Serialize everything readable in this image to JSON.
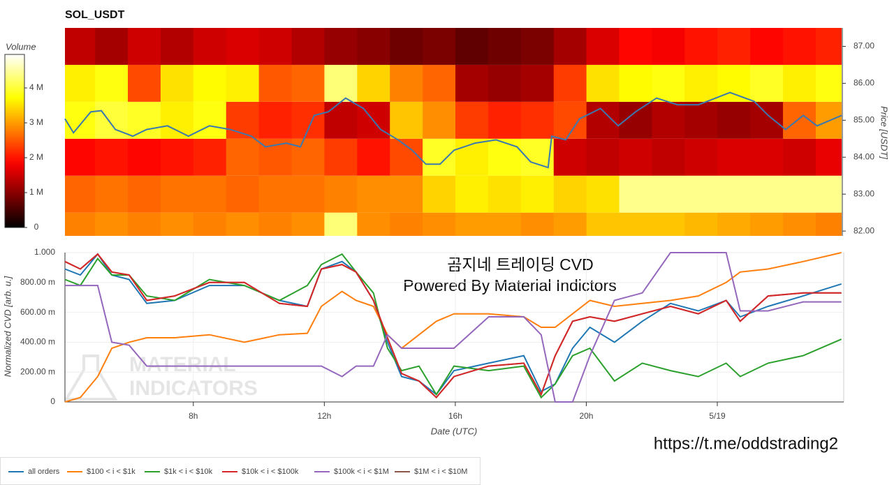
{
  "chart_data": [
    {
      "type": "heatmap",
      "title": "SOL_USDT",
      "ylabel": "Price [USDT]",
      "xlim": [
        4.08,
        27.79
      ],
      "ylim": [
        81.87,
        87.5
      ],
      "yticks": [
        {
          "value": 82,
          "label": "82.00"
        },
        {
          "value": 83,
          "label": "83.00"
        },
        {
          "value": 84,
          "label": "84.00"
        },
        {
          "value": 85,
          "label": "85.00"
        },
        {
          "value": 86,
          "label": "86.00"
        },
        {
          "value": 87,
          "label": "87.00"
        }
      ],
      "x_bins": [
        4,
        5,
        6,
        7,
        8,
        9,
        10,
        11,
        12,
        13,
        14,
        15,
        16,
        17,
        18,
        19,
        20,
        21,
        22,
        23,
        24,
        25,
        26,
        27,
        28
      ],
      "y_bins": [
        81.5,
        82.5,
        83.5,
        84.5,
        85.5,
        86.5,
        87.5
      ],
      "z": [
        [
          2800000,
          2900000,
          2800000,
          2900000,
          2800000,
          2900000,
          2800000,
          2900000,
          4300000,
          2900000,
          2800000,
          2900000,
          3000000,
          3000000,
          2900000,
          3000000,
          3300000,
          3300000,
          3300000,
          3200000,
          3100000,
          3000000,
          2900000,
          2800000
        ],
        [
          2600000,
          2700000,
          2600000,
          2700000,
          2700000,
          2600000,
          2700000,
          2700000,
          2800000,
          2900000,
          2900000,
          3400000,
          3600000,
          3500000,
          3600000,
          3400000,
          3500000,
          4400000,
          4400000,
          4400000,
          4400000,
          4400000,
          4400000,
          4400000
        ],
        [
          1900000,
          2000000,
          1900000,
          2000000,
          2100000,
          2600000,
          2500000,
          2600000,
          2300000,
          2000000,
          2400000,
          3900000,
          3600000,
          3800000,
          3900000,
          1500000,
          1400000,
          1500000,
          1400000,
          1500000,
          1600000,
          1600000,
          1500000,
          1700000
        ],
        [
          3800000,
          4000000,
          3900000,
          3600000,
          3800000,
          2300000,
          2100000,
          2200000,
          1400000,
          1500000,
          3300000,
          2900000,
          2300000,
          2100000,
          2200000,
          2400000,
          1300000,
          1100000,
          1300000,
          1200000,
          1100000,
          1200000,
          2600000,
          3000000
        ],
        [
          3600000,
          3800000,
          2400000,
          3500000,
          3700000,
          3600000,
          2500000,
          2600000,
          4300000,
          3400000,
          2800000,
          2600000,
          1200000,
          1100000,
          1200000,
          2300000,
          3500000,
          3700000,
          3800000,
          3600000,
          3700000,
          3900000,
          3600000,
          3800000
        ],
        [
          1400000,
          1200000,
          1500000,
          1300000,
          1500000,
          1600000,
          1500000,
          1300000,
          1100000,
          1000000,
          800000,
          900000,
          700000,
          800000,
          900000,
          1200000,
          1600000,
          1900000,
          1800000,
          2000000,
          2100000,
          1900000,
          2000000,
          2100000
        ]
      ],
      "colorbar": {
        "label": "Volume",
        "lim": [
          0,
          4960000
        ],
        "ticks": [
          0,
          {
            "value": 1000000,
            "label": "1 M"
          },
          {
            "value": 2000000,
            "label": "2 M"
          },
          {
            "value": 3000000,
            "label": "3 M"
          },
          {
            "value": 4000000,
            "label": "4 M"
          }
        ]
      },
      "line": {
        "color": "#3a78b0",
        "x": [
          4.08,
          4.34,
          4.87,
          5.19,
          5.62,
          6.15,
          6.57,
          7.21,
          7.85,
          8.49,
          9.13,
          9.77,
          10.2,
          10.84,
          11.27,
          11.69,
          12.12,
          12.65,
          13.19,
          13.72,
          14.25,
          14.68,
          15.1,
          15.53,
          15.96,
          16.6,
          17.24,
          17.88,
          18.3,
          18.83,
          18.94,
          19.37,
          19.79,
          20.43,
          20.97,
          21.5,
          22.14,
          22.78,
          23.42,
          24.38,
          25.12,
          25.55,
          26.08,
          26.62,
          27.04,
          27.79
        ],
        "values": [
          85.04,
          84.66,
          85.23,
          85.26,
          84.75,
          84.57,
          84.75,
          84.85,
          84.57,
          84.85,
          84.75,
          84.57,
          84.28,
          84.38,
          84.28,
          85.13,
          85.23,
          85.6,
          85.32,
          84.75,
          84.47,
          84.19,
          83.81,
          83.81,
          84.19,
          84.38,
          84.47,
          84.28,
          83.87,
          83.72,
          84.57,
          84.47,
          85.04,
          85.32,
          84.85,
          85.23,
          85.6,
          85.42,
          85.42,
          85.75,
          85.51,
          85.13,
          84.75,
          85.13,
          84.85,
          85.13
        ]
      }
    },
    {
      "type": "line",
      "xlabel": "Date (UTC)",
      "ylabel": "Normalized CVD [arb. u.]",
      "xlim": [
        4.08,
        27.86
      ],
      "ylim": [
        0,
        1
      ],
      "xticks": [
        {
          "value": 8,
          "label": "8h"
        },
        {
          "value": 12,
          "label": "12h"
        },
        {
          "value": 16,
          "label": "16h"
        },
        {
          "value": 20,
          "label": "20h"
        },
        {
          "value": 24,
          "label": "5/19"
        }
      ],
      "yticks": [
        0,
        {
          "value": 0.2,
          "label": "200.00 m"
        },
        {
          "value": 0.4,
          "label": "400.00 m"
        },
        {
          "value": 0.6,
          "label": "600.00 m"
        },
        {
          "value": 0.8,
          "label": "800.00 m"
        },
        {
          "value": 1,
          "label": "1.000"
        }
      ],
      "grid": true,
      "legend": "bottom-left",
      "annotations": [
        "곰지네 트레이딩 CVD",
        "Powered By Material Indictors"
      ],
      "watermark": [
        "MATERIAL",
        "INDICATORS"
      ],
      "x": [
        4.08,
        4.55,
        5.08,
        5.51,
        6.04,
        6.58,
        7.43,
        8.49,
        9.56,
        10.63,
        11.48,
        11.91,
        12.54,
        12.97,
        13.5,
        13.93,
        14.36,
        14.89,
        15.42,
        15.96,
        17.02,
        18.09,
        18.62,
        19.05,
        19.58,
        20.11,
        20.86,
        21.71,
        22.57,
        23.42,
        24.27,
        24.7,
        25.55,
        26.62,
        27.79
      ],
      "series": [
        {
          "name": "all orders",
          "color": "#1f77b4",
          "values": [
            0.89,
            0.85,
            0.99,
            0.85,
            0.82,
            0.66,
            0.68,
            0.78,
            0.78,
            0.68,
            0.64,
            0.89,
            0.94,
            0.87,
            0.68,
            0.4,
            0.17,
            0.14,
            0.05,
            0.21,
            0.26,
            0.31,
            0.07,
            0.12,
            0.36,
            0.5,
            0.4,
            0.54,
            0.66,
            0.61,
            0.68,
            0.57,
            0.64,
            0.71,
            0.79
          ]
        },
        {
          "name": "$100 < i < $1k",
          "color": "#ff7f0e",
          "values": [
            0,
            0.03,
            0.17,
            0.36,
            0.4,
            0.43,
            0.43,
            0.45,
            0.4,
            0.45,
            0.46,
            0.64,
            0.74,
            0.68,
            0.64,
            0.45,
            0.36,
            0.45,
            0.54,
            0.59,
            0.59,
            0.57,
            0.5,
            0.5,
            0.59,
            0.68,
            0.64,
            0.66,
            0.68,
            0.71,
            0.8,
            0.87,
            0.89,
            0.94,
            1.0
          ]
        },
        {
          "name": "$1k < i < $10k",
          "color": "#2ca02c",
          "values": [
            0.82,
            0.78,
            0.96,
            0.85,
            0.85,
            0.71,
            0.68,
            0.82,
            0.78,
            0.68,
            0.78,
            0.92,
            0.99,
            0.87,
            0.73,
            0.36,
            0.21,
            0.24,
            0.05,
            0.24,
            0.21,
            0.24,
            0.03,
            0.12,
            0.31,
            0.36,
            0.14,
            0.26,
            0.21,
            0.17,
            0.26,
            0.17,
            0.26,
            0.31,
            0.42
          ]
        },
        {
          "name": "$10k < i < $100k",
          "color": "#d62728",
          "values": [
            0.94,
            0.89,
            0.99,
            0.87,
            0.85,
            0.68,
            0.71,
            0.8,
            0.8,
            0.66,
            0.64,
            0.89,
            0.92,
            0.87,
            0.68,
            0.43,
            0.19,
            0.14,
            0.03,
            0.17,
            0.24,
            0.26,
            0.05,
            0.31,
            0.54,
            0.57,
            0.54,
            0.59,
            0.64,
            0.59,
            0.68,
            0.54,
            0.71,
            0.73,
            0.73
          ]
        },
        {
          "name": "$100k < i < $1M",
          "color": "#9467bd",
          "values": [
            0.78,
            0.78,
            0.78,
            0.4,
            0.38,
            0.24,
            0.24,
            0.24,
            0.24,
            0.24,
            0.24,
            0.24,
            0.17,
            0.24,
            0.24,
            0.45,
            0.36,
            0.36,
            0.36,
            0.36,
            0.57,
            0.57,
            0.45,
            0,
            0,
            0.31,
            0.68,
            0.73,
            1.0,
            1.0,
            1.0,
            0.61,
            0.61,
            0.67,
            0.67
          ]
        },
        {
          "name": "$1M < i < $10M",
          "color": "#8c564b",
          "values": [
            0.94,
            0.89,
            0.99,
            0.87,
            0.85,
            0.68,
            0.71,
            0.8,
            0.8,
            0.66,
            0.64,
            0.89,
            0.92,
            0.87,
            0.68,
            0.43,
            0.19,
            0.14,
            0.03,
            0.17,
            0.24,
            0.26,
            0.05,
            0.31,
            0.54,
            0.57,
            0.54,
            0.59,
            0.64,
            0.59,
            0.68,
            0.54,
            0.71,
            0.73,
            0.73
          ]
        }
      ]
    }
  ],
  "link": "https://t.me/oddstrading2"
}
